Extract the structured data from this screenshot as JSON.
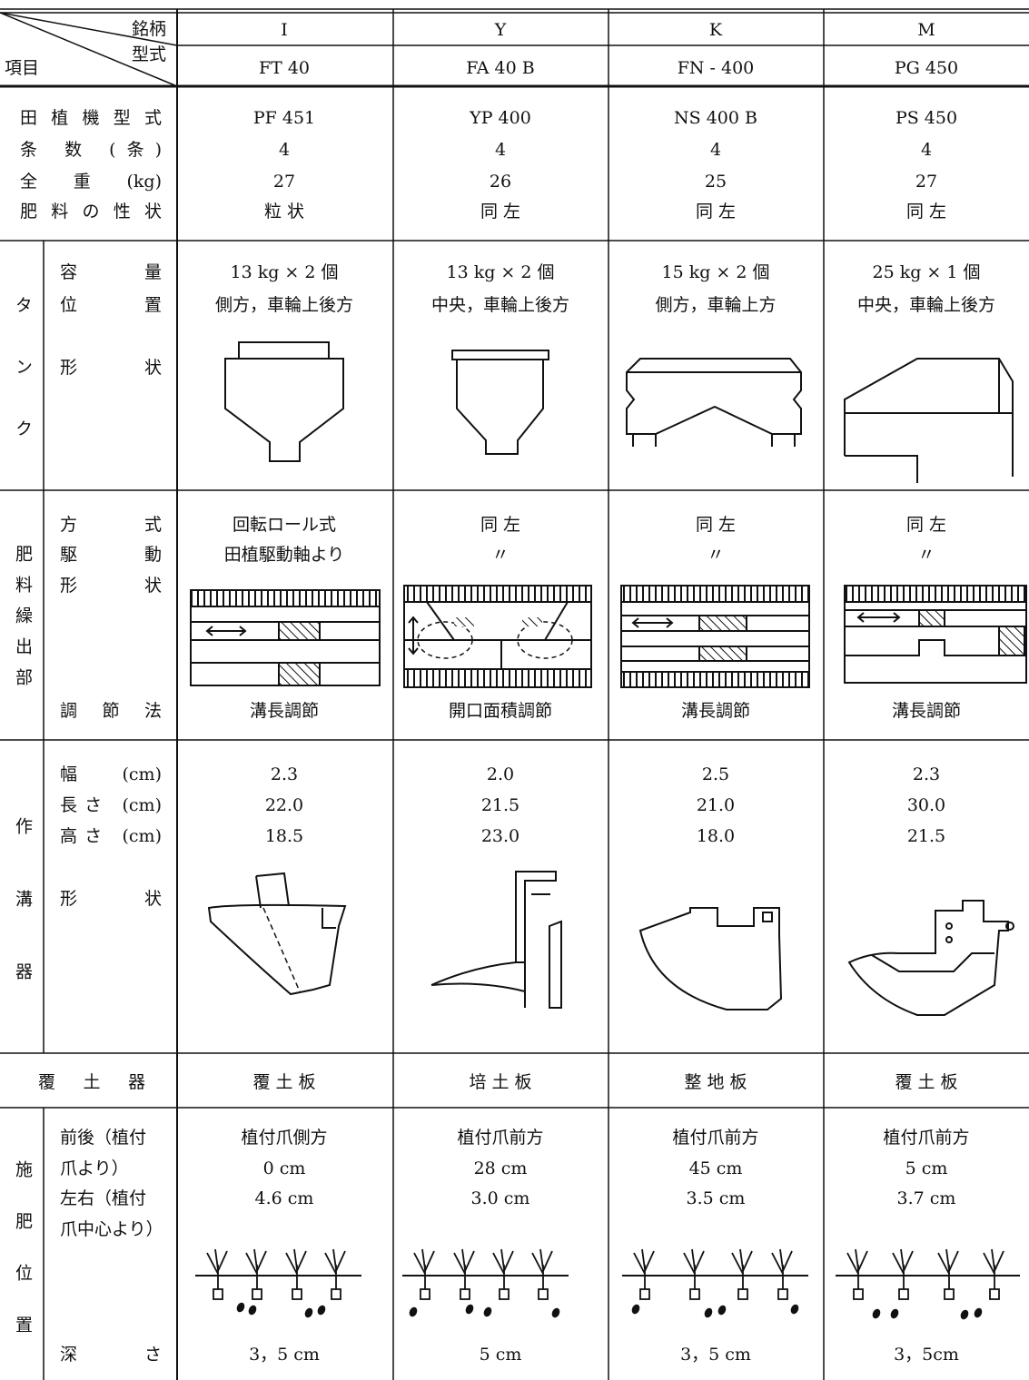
{
  "header": {
    "brand_label": "銘柄",
    "model_label": "型式",
    "item_label": "項目"
  },
  "columns": [
    {
      "brand": "I",
      "model": "FT 40"
    },
    {
      "brand": "Y",
      "model": "FA 40 B"
    },
    {
      "brand": "K",
      "model": "FN - 400"
    },
    {
      "brand": "M",
      "model": "PG 450"
    }
  ],
  "sections": [
    {
      "rows": [
        {
          "label": "田植機型式",
          "values": [
            "PF 451",
            "YP 400",
            "NS 400 B",
            "PS 450"
          ]
        },
        {
          "label": "条 数 (条)",
          "values": [
            "4",
            "4",
            "4",
            "4"
          ]
        },
        {
          "label": "全 重 (kg)",
          "values": [
            "27",
            "26",
            "25",
            "27"
          ]
        },
        {
          "label": "肥料の性状",
          "values": [
            "粒 状",
            "同 左",
            "同 左",
            "同 左"
          ]
        }
      ]
    },
    {
      "group": "タンク",
      "rows": [
        {
          "label": "容量",
          "values": [
            "13 kg × 2 個",
            "13 kg × 2 個",
            "15 kg × 2 個",
            "25 kg × 1 個"
          ]
        },
        {
          "label": "位置",
          "values": [
            "側方，車輪上後方",
            "中央，車輪上後方",
            "側方，車輪上方",
            "中央，車輪上後方"
          ]
        },
        {
          "label": "形状"
        }
      ]
    },
    {
      "group": "肥料繰出部",
      "rows": [
        {
          "label": "方式",
          "values": [
            "回転ロール式",
            "同 左",
            "同 左",
            "同 左"
          ]
        },
        {
          "label": "駆動",
          "values": [
            "田植駆動軸より",
            "〃",
            "〃",
            "〃"
          ]
        },
        {
          "label": "形状"
        },
        {
          "label": "調節法",
          "values": [
            "溝長調節",
            "開口面積調節",
            "溝長調節",
            "溝長調節"
          ]
        }
      ]
    },
    {
      "group": "作溝器",
      "rows": [
        {
          "label": "幅 (cm)",
          "values": [
            "2.3",
            "2.0",
            "2.5",
            "2.3"
          ]
        },
        {
          "label": "長さ (cm)",
          "values": [
            "22.0",
            "21.5",
            "21.0",
            "30.0"
          ]
        },
        {
          "label": "高さ (cm)",
          "values": [
            "18.5",
            "23.0",
            "18.0",
            "21.5"
          ]
        },
        {
          "label": "形状"
        }
      ]
    },
    {
      "rows": [
        {
          "label": "覆土器",
          "values": [
            "覆 土 板",
            "培 土 板",
            "整 地 板",
            "覆 土 板"
          ]
        }
      ]
    },
    {
      "group": "施肥位置",
      "rows": [
        {
          "label": "前後（植付爪より）",
          "values": [
            "植付爪側方",
            "植付爪前方",
            "植付爪前方",
            "植付爪前方"
          ]
        },
        {
          "values": [
            "0 cm",
            "28 cm",
            "45 cm",
            "5 cm"
          ]
        },
        {
          "label": "左右（植付爪中心より）",
          "values": [
            "4.6 cm",
            "3.0 cm",
            "3.5 cm",
            "3.7 cm"
          ]
        },
        {
          "label": "深さ",
          "values": [
            "3，5 cm",
            "5 cm",
            "3，5 cm",
            "3，5cm"
          ]
        }
      ]
    }
  ]
}
